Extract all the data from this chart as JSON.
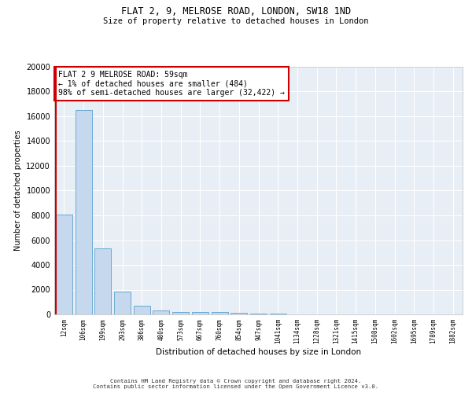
{
  "title_line1": "FLAT 2, 9, MELROSE ROAD, LONDON, SW18 1ND",
  "title_line2": "Size of property relative to detached houses in London",
  "xlabel": "Distribution of detached houses by size in London",
  "ylabel": "Number of detached properties",
  "bar_categories": [
    "12sqm",
    "106sqm",
    "199sqm",
    "293sqm",
    "386sqm",
    "480sqm",
    "573sqm",
    "667sqm",
    "760sqm",
    "854sqm",
    "947sqm",
    "1041sqm",
    "1134sqm",
    "1228sqm",
    "1321sqm",
    "1415sqm",
    "1508sqm",
    "1602sqm",
    "1695sqm",
    "1789sqm",
    "1882sqm"
  ],
  "bar_values": [
    8050,
    16500,
    5350,
    1870,
    700,
    320,
    210,
    185,
    165,
    120,
    80,
    50,
    30,
    20,
    15,
    10,
    8,
    6,
    5,
    4,
    3
  ],
  "bar_color": "#c5d8ed",
  "bar_edge_color": "#6aaad4",
  "annotation_text": "FLAT 2 9 MELROSE ROAD: 59sqm\n← 1% of detached houses are smaller (484)\n98% of semi-detached houses are larger (32,422) →",
  "annotation_box_color": "#ffffff",
  "annotation_box_edge_color": "#cc0000",
  "vline_color": "#cc0000",
  "ylim": [
    0,
    20000
  ],
  "yticks": [
    0,
    2000,
    4000,
    6000,
    8000,
    10000,
    12000,
    14000,
    16000,
    18000,
    20000
  ],
  "background_color": "#e8eef5",
  "grid_color": "#ffffff",
  "footer_line1": "Contains HM Land Registry data © Crown copyright and database right 2024.",
  "footer_line2": "Contains public sector information licensed under the Open Government Licence v3.0."
}
